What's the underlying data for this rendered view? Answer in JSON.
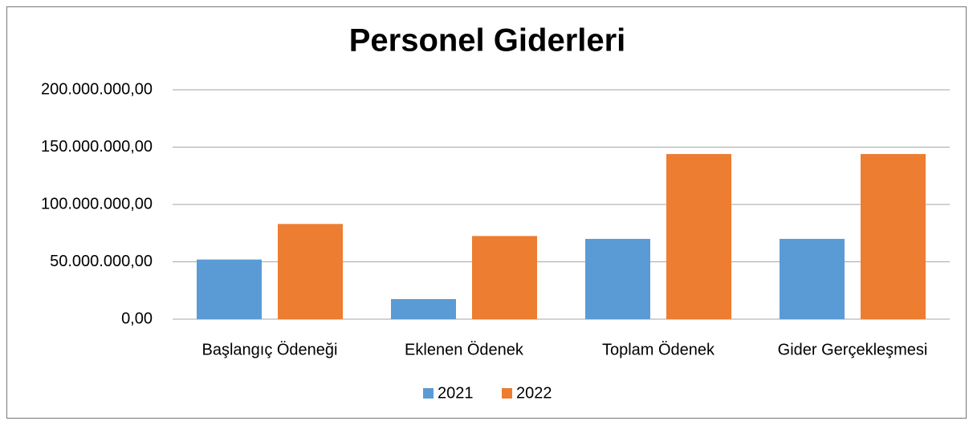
{
  "chart_data": {
    "type": "bar",
    "title": "Personel Giderleri",
    "categories": [
      "Başlangıç Ödeneği",
      "Eklenen Ödenek",
      "Toplam Ödenek",
      "Gider Gerçekleşmesi"
    ],
    "series": [
      {
        "name": "2021",
        "color": "#5b9bd5",
        "values": [
          52000000,
          17500000,
          70000000,
          70000000
        ]
      },
      {
        "name": "2022",
        "color": "#ed7d31",
        "values": [
          83000000,
          72500000,
          144000000,
          144000000
        ]
      }
    ],
    "ylim": [
      0,
      200000000
    ],
    "yticks": [
      {
        "value": 0,
        "label": "0,00"
      },
      {
        "value": 50000000,
        "label": "50.000.000,00"
      },
      {
        "value": 100000000,
        "label": "100.000.000,00"
      },
      {
        "value": 150000000,
        "label": "150.000.000,00"
      },
      {
        "value": 200000000,
        "label": "200.000.000,00"
      }
    ],
    "grid": true,
    "legend": "bottom"
  }
}
